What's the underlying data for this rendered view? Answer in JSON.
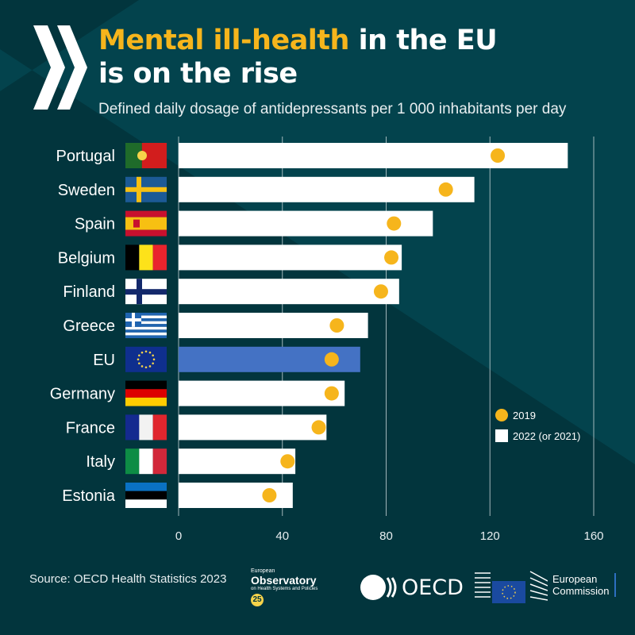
{
  "header": {
    "title_highlight": "Mental ill-health",
    "title_rest_line1": " in the EU",
    "title_line2": "is on the rise",
    "subtitle": "Defined daily dosage of antidepressants per 1 000 inhabitants per day"
  },
  "colors": {
    "bar": "#ffffff",
    "eu_bar": "#4472c4",
    "dot": "#f6b51c",
    "highlight": "#f6b51c"
  },
  "chart_data": {
    "type": "bar",
    "orientation": "horizontal",
    "title": "Mental ill-health in the EU is on the rise",
    "subtitle": "Defined daily dosage of antidepressants per 1 000 inhabitants per day",
    "categories": [
      "Portugal",
      "Sweden",
      "Spain",
      "Belgium",
      "Finland",
      "Greece",
      "EU",
      "Germany",
      "France",
      "Italy",
      "Estonia"
    ],
    "series": [
      {
        "name": "2022 (or 2021)",
        "mark": "bar",
        "values": [
          150,
          114,
          98,
          86,
          85,
          73,
          70,
          64,
          57,
          45,
          44
        ]
      },
      {
        "name": "2019",
        "mark": "dot",
        "values": [
          123,
          103,
          83,
          82,
          78,
          61,
          59,
          59,
          54,
          42,
          35
        ]
      }
    ],
    "xlim": [
      0,
      160
    ],
    "xticks": [
      "0",
      "40",
      "80",
      "120",
      "160"
    ],
    "grid": true,
    "legend": {
      "position": "bottom-right",
      "entries": [
        "2019",
        "2022 (or 2021)"
      ]
    }
  },
  "footer": {
    "source": "Source:  OECD Health Statistics 2023",
    "observatory": {
      "line1": "European",
      "line2": "Observatory",
      "line3": "on Health Systems and Policies",
      "badge": "25"
    },
    "oecd": "OECD",
    "ec": {
      "line1": "European",
      "line2": "Commission"
    }
  }
}
